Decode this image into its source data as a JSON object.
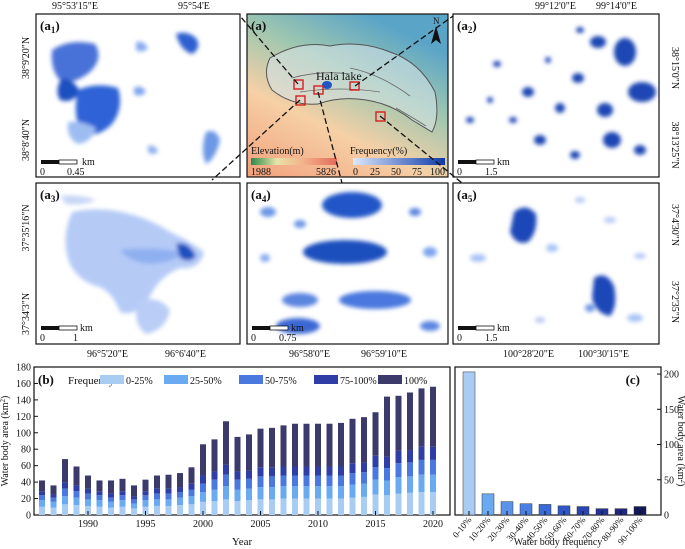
{
  "colors": {
    "c0_25": "#a9ccf3",
    "c25_50": "#6aaaf0",
    "c50_75": "#4a78de",
    "c75_100": "#2f3ea6",
    "c100": "#3b3a6b",
    "water_light": "#a9c4f5",
    "water_dark": "#1f54c2",
    "frame": "#111111"
  },
  "maps": {
    "a": {
      "label": "(a)",
      "lake_label": "Hala lake",
      "north_label": "N",
      "elevation_title": "Elevation(m)",
      "elevation_min": "1988",
      "elevation_max": "5826",
      "frequency_title": "Frequency(%)",
      "frequency_ticks": [
        "0",
        "25",
        "50",
        "75",
        "100"
      ]
    },
    "a1": {
      "label_main": "(a",
      "label_sub": "1",
      "label_close": ")",
      "top_ticks": [
        "95°53'15\"E",
        "95°54'E"
      ],
      "left_ticks": [
        "38°9'20\"N",
        "38°8'40\"N"
      ],
      "scale_unit": "km",
      "scale_start": "0",
      "scale_end": "0.45"
    },
    "a2": {
      "label_main": "(a",
      "label_sub": "2",
      "label_close": ")",
      "top_ticks": [
        "99°12'0\"E",
        "99°14'0\"E"
      ],
      "right_ticks": [
        "38°15'0\"N",
        "38°13'25\"N"
      ],
      "scale_unit": "km",
      "scale_start": "0",
      "scale_end": "1.5"
    },
    "a3": {
      "label_main": "(a",
      "label_sub": "3",
      "label_close": ")",
      "bottom_ticks": [
        "96°5'20\"E",
        "96°6'40\"E"
      ],
      "left_ticks": [
        "37°35'16\"N",
        "37°34'3\"N"
      ],
      "scale_unit": "km",
      "scale_start": "0",
      "scale_end": "1"
    },
    "a4": {
      "label_main": "(a",
      "label_sub": "4",
      "label_close": ")",
      "bottom_ticks": [
        "96°58'0\"E",
        "96°59'10\"E"
      ],
      "scale_unit": "km",
      "scale_start": "0",
      "scale_end": "0.75"
    },
    "a5": {
      "label_main": "(a",
      "label_sub": "5",
      "label_close": ")",
      "bottom_ticks": [
        "100°28'20\"E",
        "100°30'15\"E"
      ],
      "right_ticks": [
        "37°4'30\"N",
        "37°2'35\"N"
      ],
      "scale_unit": "km",
      "scale_start": "0",
      "scale_end": "1.5"
    }
  },
  "chart_data": [
    {
      "type": "bar",
      "stacked": true,
      "panel_label": "(b)",
      "legend_title": "Frequency",
      "legend": [
        "0-25%",
        "25-50%",
        "50-75%",
        "75-100%",
        "100%"
      ],
      "xlabel": "Year",
      "ylabel_main": "Water body area (km",
      "ylabel_sup": "2",
      "ylabel_close": ")",
      "ylim": [
        0,
        180
      ],
      "yticks": [
        "0",
        "20",
        "40",
        "60",
        "80",
        "100",
        "120",
        "140",
        "160",
        "180"
      ],
      "xticks": [
        "1990",
        "1995",
        "2000",
        "2005",
        "2010",
        "2015",
        "2020"
      ],
      "categories": [
        1986,
        1987,
        1988,
        1989,
        1990,
        1991,
        1992,
        1993,
        1994,
        1995,
        1996,
        1997,
        1998,
        1999,
        2000,
        2001,
        2002,
        2003,
        2004,
        2005,
        2006,
        2007,
        2008,
        2009,
        2010,
        2011,
        2012,
        2013,
        2014,
        2015,
        2016,
        2017,
        2018,
        2019,
        2020
      ],
      "series": [
        {
          "name": "0-25%",
          "values": [
            10,
            9,
            13,
            12,
            11,
            10,
            9,
            10,
            8,
            10,
            11,
            11,
            12,
            13,
            16,
            17,
            19,
            17,
            18,
            19,
            19,
            20,
            20,
            20,
            20,
            20,
            20,
            21,
            22,
            25,
            24,
            26,
            27,
            28,
            28
          ]
        },
        {
          "name": "25-50%",
          "values": [
            8,
            7,
            10,
            9,
            8,
            8,
            7,
            8,
            6,
            8,
            8,
            8,
            9,
            10,
            12,
            14,
            16,
            14,
            14,
            15,
            15,
            15,
            15,
            15,
            15,
            15,
            15,
            16,
            16,
            18,
            18,
            20,
            20,
            21,
            21
          ]
        },
        {
          "name": "50-75%",
          "values": [
            6,
            5,
            9,
            8,
            7,
            6,
            5,
            6,
            5,
            6,
            7,
            7,
            7,
            8,
            10,
            12,
            14,
            12,
            12,
            13,
            13,
            13,
            13,
            13,
            13,
            13,
            13,
            14,
            14,
            15,
            15,
            17,
            17,
            18,
            18
          ]
        },
        {
          "name": "75-100%",
          "values": [
            5,
            4,
            8,
            7,
            6,
            5,
            5,
            5,
            4,
            5,
            6,
            6,
            6,
            7,
            10,
            10,
            12,
            10,
            10,
            11,
            11,
            11,
            11,
            11,
            11,
            11,
            11,
            12,
            12,
            14,
            14,
            15,
            15,
            16,
            16
          ]
        },
        {
          "name": "100%",
          "values": [
            13,
            11,
            28,
            23,
            16,
            13,
            16,
            15,
            13,
            14,
            16,
            17,
            17,
            20,
            38,
            39,
            53,
            42,
            44,
            47,
            48,
            50,
            52,
            52,
            52,
            52,
            53,
            54,
            55,
            53,
            73,
            67,
            70,
            71,
            73
          ]
        }
      ]
    },
    {
      "type": "bar",
      "panel_label": "(c)",
      "xlabel": "Water body frequency",
      "ylabel_main": "Water body area (km",
      "ylabel_sup": "2",
      "ylabel_close": ")",
      "ylim": [
        0,
        210
      ],
      "yticks": [
        "0",
        "50",
        "100",
        "150",
        "200"
      ],
      "categories": [
        "0-10%",
        "10-20%",
        "20-30%",
        "30-40%",
        "40-50%",
        "50-60%",
        "60-70%",
        "70-80%",
        "80-90%",
        "90-100%"
      ],
      "values": [
        203,
        30,
        19,
        16,
        15,
        13,
        12,
        9,
        9,
        12
      ],
      "bar_colors": [
        "#a9ccf3",
        "#6aaaf0",
        "#5b93ea",
        "#4a7fe4",
        "#3a6ad8",
        "#2f57c8",
        "#2a44b2",
        "#23339a",
        "#1e2880",
        "#101858"
      ]
    }
  ]
}
